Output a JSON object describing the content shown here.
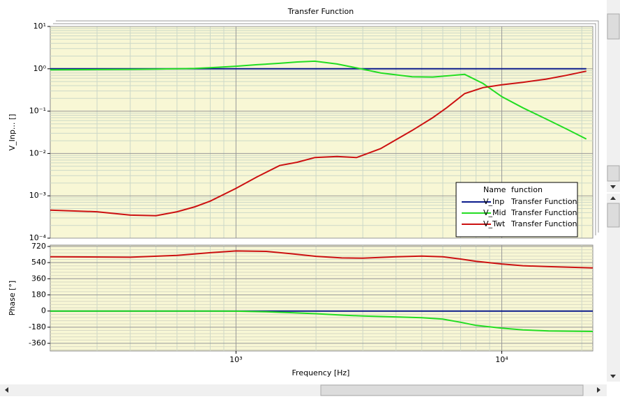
{
  "chart_data": [
    {
      "type": "line",
      "title": "Transfer Function",
      "ylabel": "V_Inp... []",
      "xscale": "log",
      "yscale": "log",
      "xlim": [
        200,
        22000
      ],
      "ylim": [
        0.0001,
        10
      ],
      "yticks": [
        {
          "value": 10,
          "label": "10¹"
        },
        {
          "value": 1,
          "label": "10⁰"
        },
        {
          "value": 0.1,
          "label": "10⁻¹"
        },
        {
          "value": 0.01,
          "label": "10⁻²"
        },
        {
          "value": 0.001,
          "label": "10⁻³"
        },
        {
          "value": 0.0001,
          "label": "10⁻⁴"
        }
      ],
      "grid": true,
      "background": "#f8f7d5",
      "legend": {
        "header": [
          "Name",
          "function"
        ],
        "position": "lower right"
      },
      "x": [
        200,
        300,
        400,
        500,
        600,
        700,
        800,
        1000,
        1200,
        1460,
        1700,
        1980,
        2400,
        2840,
        3500,
        4600,
        5500,
        6200,
        7250,
        8500,
        10000,
        12000,
        14700,
        17500,
        20800
      ],
      "series": [
        {
          "name": "V_Inp",
          "function": "Transfer Function",
          "color": "#0a1a8c",
          "values": [
            1,
            1,
            1,
            1,
            1,
            1,
            1,
            1,
            1,
            1,
            1,
            1,
            1,
            1,
            1,
            1,
            1,
            1,
            1,
            1,
            1,
            1,
            1,
            1,
            1
          ]
        },
        {
          "name": "V_Mid",
          "function": "Transfer Function",
          "color": "#22dd22",
          "values": [
            0.95,
            0.96,
            0.97,
            0.98,
            1.0,
            1.02,
            1.06,
            1.15,
            1.25,
            1.35,
            1.45,
            1.51,
            1.3,
            1.05,
            0.8,
            0.65,
            0.64,
            0.68,
            0.74,
            0.45,
            0.22,
            0.12,
            0.065,
            0.038,
            0.022
          ]
        },
        {
          "name": "V_Twt",
          "function": "Transfer Function",
          "color": "#cc1111",
          "values": [
            0.00046,
            0.00042,
            0.00035,
            0.00034,
            0.00042,
            0.00055,
            0.00075,
            0.0015,
            0.0028,
            0.0052,
            0.0062,
            0.008,
            0.0085,
            0.008,
            0.013,
            0.035,
            0.07,
            0.12,
            0.26,
            0.36,
            0.42,
            0.48,
            0.57,
            0.7,
            0.88
          ]
        }
      ]
    },
    {
      "type": "line",
      "ylabel": "Phase [°]",
      "xlabel": "Frequency [Hz]",
      "xscale": "log",
      "yscale": "linear",
      "xlim": [
        200,
        22000
      ],
      "ylim": [
        -445,
        735
      ],
      "xticks": [
        {
          "value": 1000,
          "label": "10³"
        },
        {
          "value": 10000,
          "label": "10⁴"
        }
      ],
      "yticks": [
        720,
        540,
        360,
        180,
        0,
        -180,
        -360
      ],
      "grid": true,
      "background": "#f8f7d5",
      "x": [
        200,
        400,
        600,
        800,
        1000,
        1300,
        1600,
        2000,
        2500,
        3000,
        4000,
        5000,
        6000,
        7000,
        8000,
        10000,
        12000,
        15000,
        22000
      ],
      "series": [
        {
          "name": "V_Inp",
          "color": "#0a1a8c",
          "values": [
            0,
            0,
            0,
            0,
            0,
            0,
            0,
            0,
            0,
            0,
            0,
            0,
            0,
            0,
            0,
            0,
            0,
            0,
            0
          ]
        },
        {
          "name": "V_Mid",
          "color": "#22dd22",
          "values": [
            0,
            0,
            0,
            0,
            -2,
            -8,
            -18,
            -30,
            -45,
            -55,
            -65,
            -75,
            -90,
            -125,
            -160,
            -190,
            -210,
            -222,
            -228
          ]
        },
        {
          "name": "V_Twt",
          "color": "#cc1111",
          "values": [
            605,
            600,
            620,
            650,
            670,
            665,
            640,
            610,
            592,
            590,
            605,
            612,
            605,
            580,
            555,
            525,
            505,
            495,
            480
          ]
        }
      ]
    }
  ]
}
